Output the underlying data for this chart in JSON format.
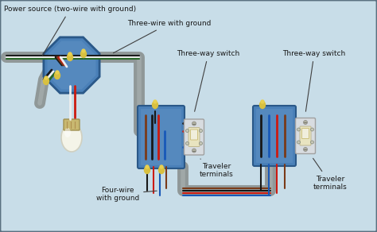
{
  "bg_color": "#b8cedd",
  "bg_color2": "#c8dde8",
  "border_color": "#5a7080",
  "box_blue": "#4a80b8",
  "box_blue_edge": "#2a5888",
  "box_blue_light": "#6898c8",
  "switch_body": "#d8dce0",
  "switch_face": "#e8e4c0",
  "switch_plate": "#f0eedc",
  "wire_gray": "#888888",
  "wire_gray2": "#aaaaaa",
  "wire_black": "#181818",
  "wire_red": "#cc1a10",
  "wire_white": "#eeeeee",
  "wire_blue": "#1858b8",
  "wire_brown": "#7a3a18",
  "wire_green": "#286828",
  "connector_yellow": "#d8c040",
  "connector_yellow2": "#e8d050",
  "lamp_base": "#c8b870",
  "lamp_glass": "#f4f4e8",
  "lamp_socket": "#d0c080",
  "conduit_gray": "#909898",
  "screw_color": "#b0b0a0",
  "labels": {
    "power_source": "Power source (two-wire with ground)",
    "three_wire": "Three-wire with ground",
    "four_wire": "Four-wire\nwith ground",
    "switch1": "Three-way switch",
    "switch2": "Three-way switch",
    "traveler1": "Traveler\nterminals",
    "traveler2": "Traveler\nterminals"
  },
  "figsize": [
    4.74,
    2.92
  ],
  "dpi": 100
}
